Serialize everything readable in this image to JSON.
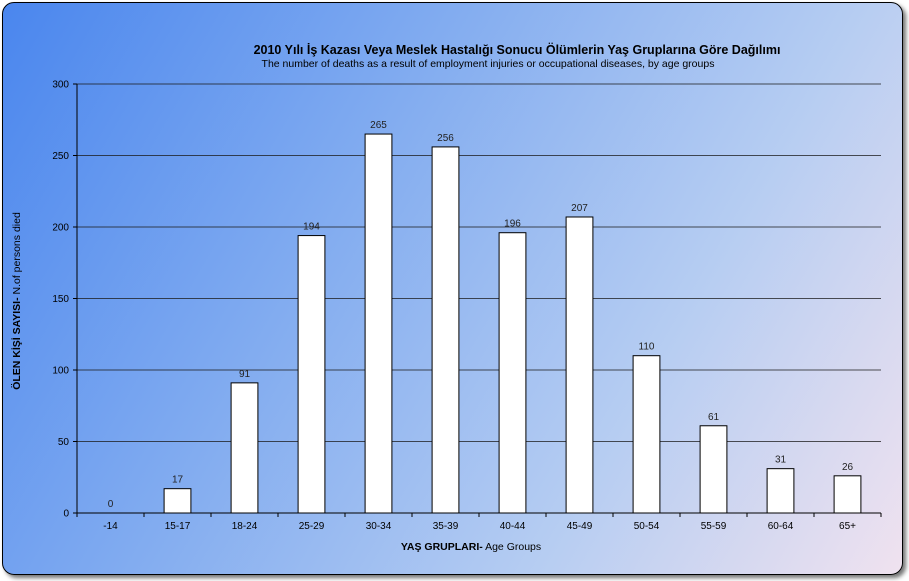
{
  "chart_data": {
    "type": "bar",
    "title": "2010 Yılı İş Kazası  Veya Meslek Hastalığı Sonucu Ölümlerin Yaş Gruplarına Göre Dağılımı",
    "subtitle": "The number of deaths as a result of employment injuries or occupational diseases, by age groups",
    "xlabel_bold": "YAŞ GRUPLARI-",
    "xlabel_rest": " Age Groups",
    "ylabel_bold": "ÖLEN KİŞİ SAYISI-",
    "ylabel_rest": " N.of persons died",
    "categories": [
      "-14",
      "15-17",
      "18-24",
      "25-29",
      "30-34",
      "35-39",
      "40-44",
      "45-49",
      "50-54",
      "55-59",
      "60-64",
      "65+"
    ],
    "values": [
      0,
      17,
      91,
      194,
      265,
      256,
      196,
      207,
      110,
      61,
      31,
      26
    ],
    "ylim": [
      0,
      300
    ],
    "yticks": [
      0,
      50,
      100,
      150,
      200,
      250,
      300
    ],
    "grid": true,
    "legend": "none",
    "colors": {
      "bar_fill": "#ffffff",
      "bar_stroke": "#000000",
      "grid": "#1a1a1a"
    }
  }
}
